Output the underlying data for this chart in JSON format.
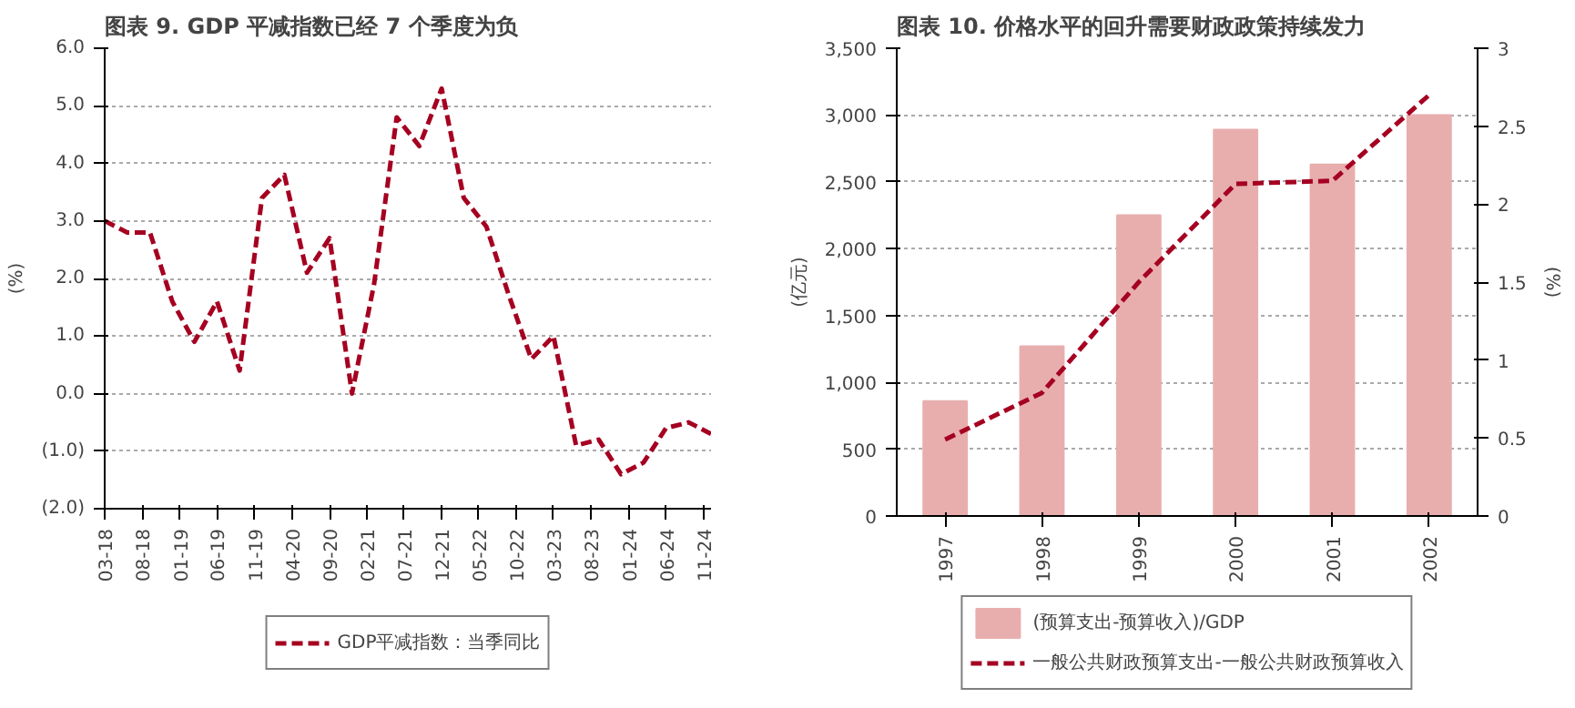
{
  "chart_data": [
    {
      "type": "line",
      "title": "图表 9. GDP 平减指数已经 7 个季度为负",
      "ylabel": "(%)",
      "x": [
        "2018-03",
        "2018-06",
        "2018-09",
        "2018-12",
        "2019-03",
        "2019-06",
        "2019-09",
        "2019-12",
        "2020-03",
        "2020-06",
        "2020-09",
        "2020-12",
        "2021-03",
        "2021-06",
        "2021-09",
        "2021-12",
        "2022-03",
        "2022-06",
        "2022-09",
        "2022-12",
        "2023-03",
        "2023-06",
        "2023-09",
        "2023-12",
        "2024-03",
        "2024-06",
        "2024-09",
        "2024-12"
      ],
      "series": [
        {
          "name": "GDP平减指数：当季同比",
          "color": "#a50021",
          "values": [
            3.0,
            2.8,
            2.8,
            1.6,
            0.9,
            1.6,
            0.4,
            3.4,
            3.8,
            2.1,
            2.7,
            0.0,
            1.9,
            4.8,
            4.3,
            5.3,
            3.4,
            2.9,
            1.7,
            0.6,
            1.0,
            -0.9,
            -0.8,
            -1.4,
            -1.2,
            -0.6,
            -0.5,
            -0.7
          ]
        }
      ],
      "xlim": [
        "2018-03",
        "2024-12"
      ],
      "xticks": [
        {
          "value": "2018-03",
          "label": "03-18"
        },
        {
          "value": "2018-08",
          "label": "08-18"
        },
        {
          "value": "2019-01",
          "label": "01-19"
        },
        {
          "value": "2019-06",
          "label": "06-19"
        },
        {
          "value": "2019-11",
          "label": "11-19"
        },
        {
          "value": "2020-04",
          "label": "04-20"
        },
        {
          "value": "2020-09",
          "label": "09-20"
        },
        {
          "value": "2021-02",
          "label": "02-21"
        },
        {
          "value": "2021-07",
          "label": "07-21"
        },
        {
          "value": "2021-12",
          "label": "12-21"
        },
        {
          "value": "2022-05",
          "label": "05-22"
        },
        {
          "value": "2022-10",
          "label": "10-22"
        },
        {
          "value": "2023-03",
          "label": "03-23"
        },
        {
          "value": "2023-08",
          "label": "08-23"
        },
        {
          "value": "2024-01",
          "label": "01-24"
        },
        {
          "value": "2024-06",
          "label": "06-24"
        },
        {
          "value": "2024-11",
          "label": "11-24"
        }
      ],
      "ylim": [
        -2,
        6
      ],
      "yticks": [
        {
          "value": -2,
          "label": "(2.0)"
        },
        {
          "value": -1,
          "label": "(1.0)"
        },
        {
          "value": 0,
          "label": "0.0"
        },
        {
          "value": 1,
          "label": "1.0"
        },
        {
          "value": 2,
          "label": "2.0"
        },
        {
          "value": 3,
          "label": "3.0"
        },
        {
          "value": 4,
          "label": "4.0"
        },
        {
          "value": 5,
          "label": "5.0"
        },
        {
          "value": 6,
          "label": "6.0"
        }
      ],
      "grid": "y",
      "legend": "bottom",
      "line_style": "dashed"
    },
    {
      "type": "bar",
      "title": "图表 10. 价格水平的回升需要财政政策持续发力",
      "ylabel": "(亿元)",
      "y2label": "(%)",
      "categories": [
        "1997",
        "1998",
        "1999",
        "2000",
        "2001",
        "2002"
      ],
      "series": [
        {
          "name": "(预算支出-预算收入)/GDP",
          "color": "#e8aeae",
          "values": [
            860,
            1270,
            2250,
            2890,
            2630,
            3000
          ]
        },
        {
          "name": "一般公共财政预算支出-一般公共财政预算收入",
          "type": "line",
          "axis": "y2",
          "color": "#a50021",
          "values": [
            0.49,
            0.79,
            1.5,
            2.13,
            2.15,
            2.7
          ]
        }
      ],
      "ylim": [
        0,
        3500
      ],
      "yticks": [
        0,
        500,
        {
          "value": 1000,
          "label": "1,000"
        },
        {
          "value": 1500,
          "label": "1,500"
        },
        {
          "value": 2000,
          "label": "2,000"
        },
        {
          "value": 2500,
          "label": "2,500"
        },
        {
          "value": 3000,
          "label": "3,000"
        },
        {
          "value": 3500,
          "label": "3,500"
        }
      ],
      "y2lim": [
        0,
        3
      ],
      "y2ticks": [
        0,
        0.5,
        1,
        1.5,
        2,
        2.5,
        3
      ],
      "grid": "y",
      "legend": "bottom",
      "line_style": "dashed"
    }
  ]
}
